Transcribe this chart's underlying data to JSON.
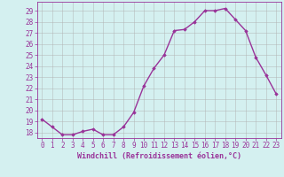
{
  "hours": [
    0,
    1,
    2,
    3,
    4,
    5,
    6,
    7,
    8,
    9,
    10,
    11,
    12,
    13,
    14,
    15,
    16,
    17,
    18,
    19,
    20,
    21,
    22,
    23
  ],
  "values": [
    19.2,
    18.5,
    17.8,
    17.8,
    18.1,
    18.3,
    17.8,
    17.8,
    18.5,
    19.8,
    22.2,
    23.8,
    25.0,
    27.2,
    27.3,
    28.0,
    29.0,
    29.0,
    29.2,
    28.2,
    27.2,
    24.8,
    23.2,
    21.5
  ],
  "line_color": "#993399",
  "marker": "D",
  "marker_size": 1.8,
  "bg_color": "#d4f0f0",
  "grid_color": "#b0b0b0",
  "xlabel": "Windchill (Refroidissement éolien,°C)",
  "xlabel_color": "#993399",
  "tick_color": "#993399",
  "ylabel_ticks": [
    18,
    19,
    20,
    21,
    22,
    23,
    24,
    25,
    26,
    27,
    28,
    29
  ],
  "ylim": [
    17.5,
    29.8
  ],
  "xlim": [
    -0.5,
    23.5
  ],
  "xtick_labels": [
    "0",
    "1",
    "2",
    "3",
    "4",
    "5",
    "6",
    "7",
    "8",
    "9",
    "10",
    "11",
    "12",
    "13",
    "14",
    "15",
    "16",
    "17",
    "18",
    "19",
    "20",
    "21",
    "22",
    "23"
  ],
  "linewidth": 1.0,
  "font_size": 5.5,
  "xlabel_fontsize": 6.0
}
